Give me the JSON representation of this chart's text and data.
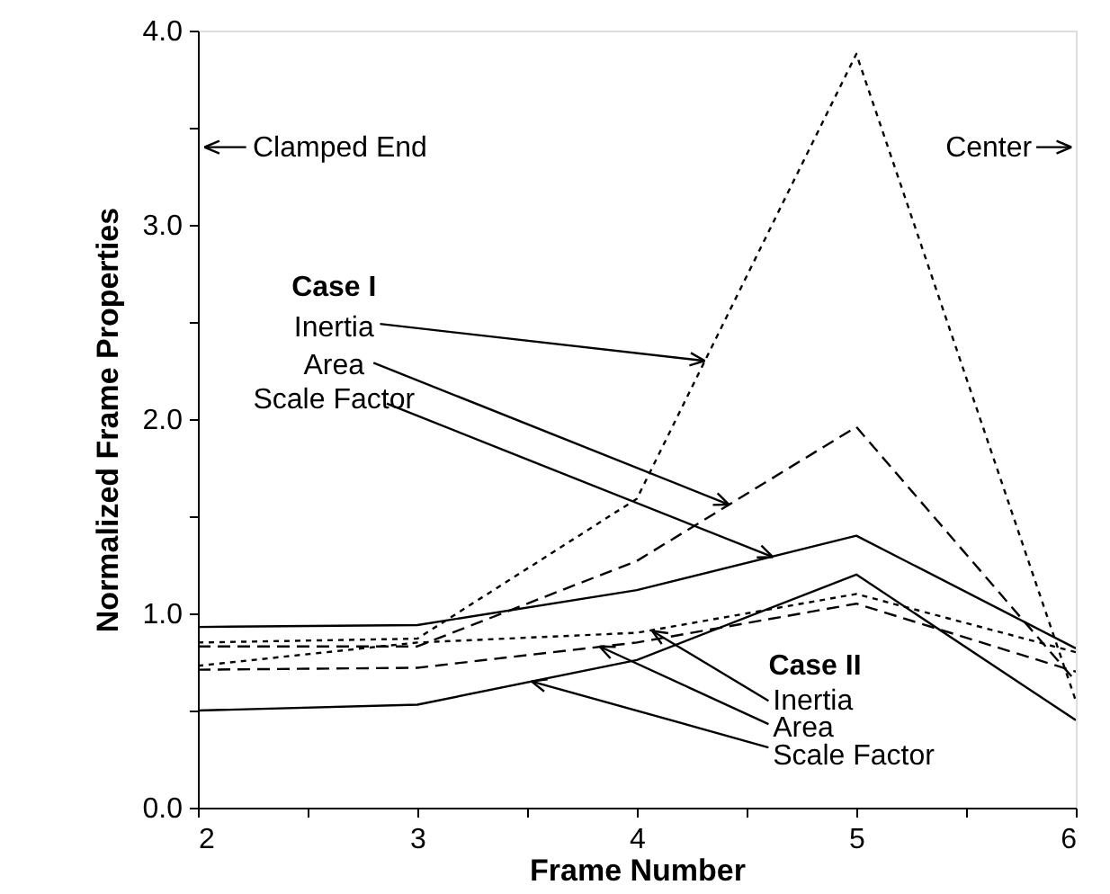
{
  "chart_data": {
    "type": "line",
    "xlabel": "Frame Number",
    "ylabel": "Normalized Frame Properties",
    "x": [
      2,
      3,
      4,
      5,
      6
    ],
    "series": [
      {
        "color": "#000000",
        "line_style": "dotted",
        "values": [
          0.85,
          0.87,
          1.59,
          3.88,
          0.55
        ]
      },
      {
        "color": "#000000",
        "line_style": "dashed",
        "values": [
          0.83,
          0.83,
          1.27,
          1.96,
          0.65
        ]
      },
      {
        "color": "#000000",
        "line_style": "solid",
        "values": [
          0.93,
          0.94,
          1.12,
          1.4,
          0.82
        ]
      },
      {
        "color": "#000000",
        "line_style": "dotted",
        "values": [
          0.73,
          0.85,
          0.9,
          1.1,
          0.8
        ]
      },
      {
        "color": "#000000",
        "line_style": "dashed",
        "values": [
          0.71,
          0.72,
          0.85,
          1.05,
          0.7
        ]
      },
      {
        "color": "#000000",
        "line_style": "solid",
        "values": [
          0.5,
          0.53,
          0.76,
          1.2,
          0.45
        ]
      }
    ],
    "xlim": [
      2,
      6
    ],
    "xticks": [
      2,
      {
        "value": 2.5,
        "label": null
      },
      3,
      {
        "value": 3.5,
        "label": null
      },
      4,
      {
        "value": 4.5,
        "label": null
      },
      5,
      {
        "value": 5.5,
        "label": null
      },
      6
    ],
    "ylim": [
      0,
      4
    ],
    "yticks": [
      {
        "value": 0,
        "label": "0.0"
      },
      {
        "value": 0.5,
        "label": null
      },
      {
        "value": 1,
        "label": "1.0"
      },
      {
        "value": 1.5,
        "label": null
      },
      {
        "value": 2,
        "label": "2.0"
      },
      {
        "value": 2.5,
        "label": null
      },
      {
        "value": 3,
        "label": "3.0"
      },
      {
        "value": 3.5,
        "label": null
      },
      {
        "value": 4,
        "label": "4.0"
      }
    ],
    "annotations": [
      "Clamped End",
      "Center",
      "Case I",
      {
        "text": "Inertia",
        "x": 4.31,
        "y": 2.3
      },
      {
        "text": "Area",
        "x": 4.42,
        "y": 1.56
      },
      {
        "text": "Scale Factor",
        "x": 4.62,
        "y": 1.29
      },
      "Case II",
      {
        "text": "Inertia",
        "x": 4.07,
        "y": 0.91
      },
      {
        "text": "Area",
        "x": 3.83,
        "y": 0.83
      },
      {
        "text": "Scale Factor",
        "x": 3.52,
        "y": 0.65
      }
    ],
    "grid": false,
    "marker": "none"
  }
}
